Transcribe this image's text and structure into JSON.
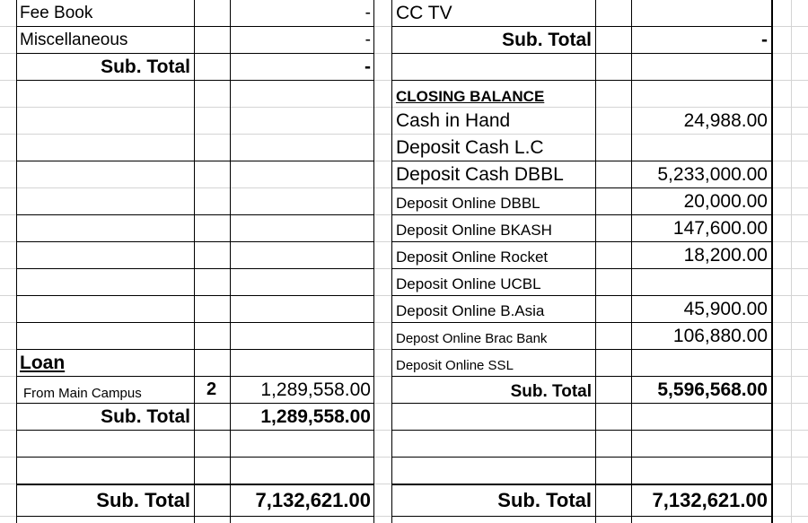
{
  "left": {
    "rows": [
      {
        "label": "Fee Book",
        "amount": "-"
      },
      {
        "label": "Miscellaneous",
        "amount": "-"
      }
    ],
    "subtotal1": {
      "label": "Sub. Total",
      "amount": "-"
    },
    "loan": {
      "heading": "Loan ",
      "row": {
        "label": "From Main Campus",
        "note": "2",
        "amount": "1,289,558.00"
      },
      "subtotal": {
        "label": "Sub. Total",
        "amount": "1,289,558.00"
      }
    },
    "grand_total": {
      "label": "Sub. Total",
      "amount": "7,132,621.00"
    }
  },
  "right": {
    "top_item": "CC TV",
    "subtotal_top": {
      "label": "Sub. Total",
      "amount": "-"
    },
    "closing": {
      "heading": "CLOSING BALANCE",
      "items": [
        {
          "label": "Cash in Hand",
          "amount": "24,988.00"
        },
        {
          "label": "Deposit Cash L.C",
          "amount": ""
        },
        {
          "label": "Deposit Cash DBBL",
          "amount": "5,233,000.00"
        },
        {
          "label": "Deposit Online DBBL",
          "amount": "20,000.00"
        },
        {
          "label": "Deposit Online BKASH",
          "amount": "147,600.00"
        },
        {
          "label": "Deposit Online Rocket",
          "amount": "18,200.00"
        },
        {
          "label": "Deposit Online UCBL",
          "amount": ""
        },
        {
          "label": "Deposit Online B.Asia",
          "amount": "45,900.00"
        },
        {
          "label": "Depost Online Brac Bank",
          "amount": "106,880.00"
        },
        {
          "label": "Deposit Online SSL",
          "amount": ""
        }
      ],
      "subtotal": {
        "label": "Sub. Total",
        "amount": "5,596,568.00"
      }
    },
    "grand_total": {
      "label": "Sub. Total",
      "amount": "7,132,621.00"
    }
  }
}
